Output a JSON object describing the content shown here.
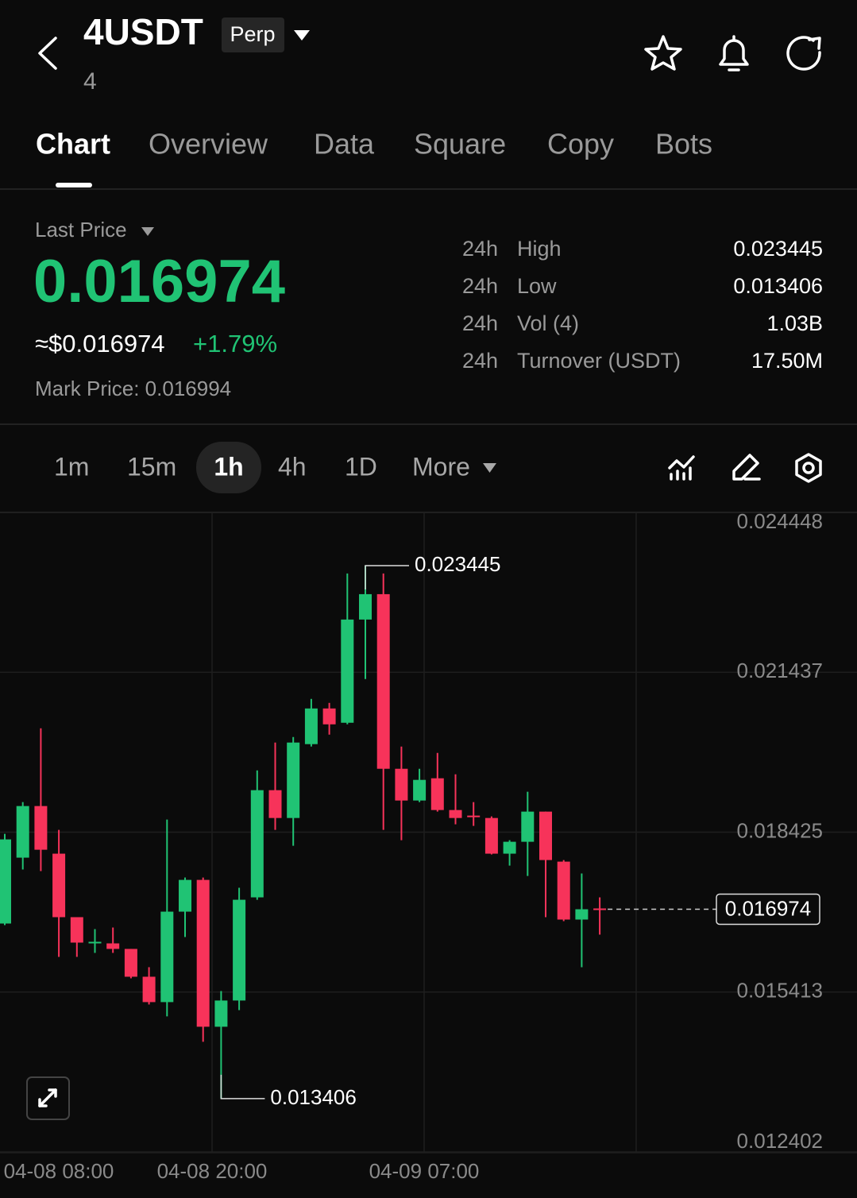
{
  "header": {
    "symbol": "4USDT",
    "badge": "Perp",
    "subtitle": "4"
  },
  "tabs": [
    "Chart",
    "Overview",
    "Data",
    "Square",
    "Copy",
    "Bots"
  ],
  "price": {
    "label": "Last Price",
    "last": "0.016974",
    "usd": "≈$0.016974",
    "change": "+1.79%",
    "mark": "Mark Price: 0.016994"
  },
  "stats": [
    {
      "period": "24h",
      "label": "High",
      "value": "0.023445"
    },
    {
      "period": "24h",
      "label": "Low",
      "value": "0.013406"
    },
    {
      "period": "24h",
      "label": "Vol (4)",
      "value": "1.03B"
    },
    {
      "period": "24h",
      "label": "Turnover (USDT)",
      "value": "17.50M"
    }
  ],
  "intervals": [
    "1m",
    "15m",
    "1h",
    "4h",
    "1D",
    "More"
  ],
  "chart_data": {
    "type": "candlestick",
    "up_color": "#20c374",
    "down_color": "#f7335a",
    "open": [
      0.016704,
      0.017945,
      0.018917,
      0.01802,
      0.016824,
      0.01633,
      0.01633,
      0.016226,
      0.015702,
      0.015224,
      0.016928,
      0.017526,
      0.01476,
      0.015254,
      0.017197,
      0.019216,
      0.018692,
      0.020083,
      0.020755,
      0.020486,
      0.02243,
      0.022908,
      0.019619,
      0.019021,
      0.01944,
      0.018842,
      0.018737,
      0.018692,
      0.01802,
      0.018244,
      0.018812,
      0.01787,
      0.016779,
      0.016988
    ],
    "high": [
      0.018393,
      0.018991,
      0.020382,
      0.018468,
      0.016824,
      0.016599,
      0.016629,
      0.016226,
      0.015882,
      0.018662,
      0.017571,
      0.017571,
      0.015433,
      0.017377,
      0.019589,
      0.020113,
      0.020217,
      0.020935,
      0.02086,
      0.023297,
      0.023445,
      0.023297,
      0.020038,
      0.019619,
      0.019918,
      0.019515,
      0.018991,
      0.018722,
      0.018274,
      0.019186,
      0.018812,
      0.0179,
      0.017646,
      0.017197
    ],
    "low": [
      0.016674,
      0.017721,
      0.017691,
      0.016076,
      0.016076,
      0.016151,
      0.016151,
      0.015672,
      0.015179,
      0.014955,
      0.01645,
      0.014476,
      0.013406,
      0.015074,
      0.017152,
      0.018468,
      0.018169,
      0.020038,
      0.020262,
      0.020456,
      0.021309,
      0.018468,
      0.018274,
      0.018991,
      0.018812,
      0.018573,
      0.018543,
      0.018005,
      0.017795,
      0.017601,
      0.016824,
      0.016749,
      0.015882,
      0.016495
    ],
    "close": [
      0.018289,
      0.018917,
      0.018094,
      0.016824,
      0.016345,
      0.01636,
      0.016226,
      0.015702,
      0.015224,
      0.016928,
      0.017526,
      0.01476,
      0.015254,
      0.017152,
      0.019216,
      0.018692,
      0.020113,
      0.020755,
      0.020456,
      0.02243,
      0.022908,
      0.019619,
      0.019021,
      0.01941,
      0.018842,
      0.018692,
      0.018722,
      0.01802,
      0.018244,
      0.018812,
      0.0179,
      0.016779,
      0.016973,
      0.016974
    ],
    "ylim": [
      0.012402,
      0.024448
    ],
    "yticks": [
      0.024448,
      0.021437,
      0.018425,
      0.015413,
      0.012402
    ],
    "xticks": [
      "04-08 08:00",
      "04-08 20:00",
      "04-09 07:00"
    ],
    "grid": true
  }
}
